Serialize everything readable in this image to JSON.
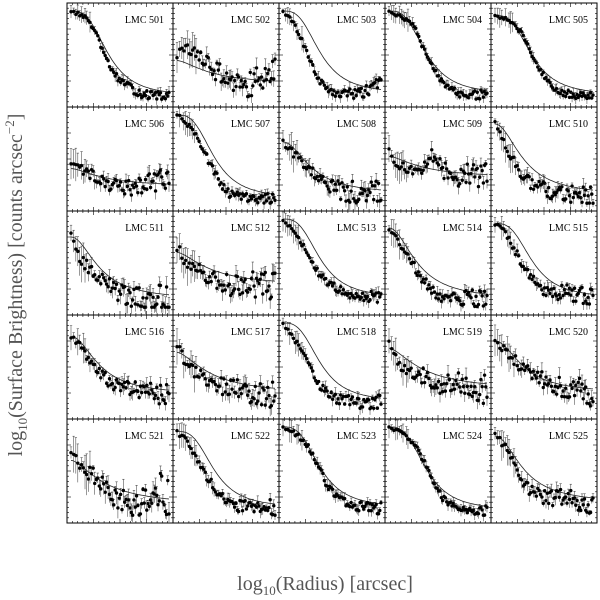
{
  "figure": {
    "ylabel": {
      "pre": "log",
      "sub": "10",
      "mid": "(Surface Brightness) [counts arcsec",
      "sup": "−2",
      "post": "]"
    },
    "xlabel": {
      "pre": "log",
      "sub": "10",
      "mid": "(Radius) [arcsec]"
    }
  },
  "chart_data": {
    "type": "scatter",
    "description_of_panels": "5x5 grid of radial surface brightness profiles with fitted model curves",
    "panels": [
      {
        "label": "LMC 501",
        "profile": [
          1.0,
          0.96,
          0.9,
          0.7,
          0.45,
          0.28,
          0.2,
          0.12,
          0.08,
          0.06,
          0.05,
          0.05
        ],
        "noise": 0.08,
        "model": "steep"
      },
      {
        "label": "LMC 502",
        "profile": [
          0.5,
          0.6,
          0.55,
          0.45,
          0.35,
          0.3,
          0.25,
          0.2,
          0.18,
          0.22,
          0.3,
          0.35
        ],
        "noise": 0.25,
        "model": "shallow"
      },
      {
        "label": "LMC 503",
        "profile": [
          1.0,
          0.9,
          0.7,
          0.45,
          0.25,
          0.12,
          0.08,
          0.1,
          0.08,
          0.1,
          0.15,
          0.2
        ],
        "noise": 0.1,
        "model": "steep"
      },
      {
        "label": "LMC 504",
        "profile": [
          1.0,
          0.95,
          0.9,
          0.8,
          0.55,
          0.35,
          0.2,
          0.12,
          0.08,
          0.07,
          0.07,
          0.07
        ],
        "noise": 0.08,
        "model": "steep"
      },
      {
        "label": "LMC 505",
        "profile": [
          0.95,
          0.92,
          0.88,
          0.75,
          0.55,
          0.35,
          0.2,
          0.12,
          0.08,
          0.07,
          0.06,
          0.06
        ],
        "noise": 0.07,
        "model": "steep"
      },
      {
        "label": "LMC 506",
        "profile": [
          0.45,
          0.4,
          0.35,
          0.3,
          0.25,
          0.2,
          0.2,
          0.2,
          0.22,
          0.25,
          0.28,
          0.25
        ],
        "noise": 0.2,
        "model": "shallow"
      },
      {
        "label": "LMC 507",
        "profile": [
          1.0,
          0.92,
          0.8,
          0.6,
          0.4,
          0.22,
          0.12,
          0.1,
          0.08,
          0.08,
          0.07,
          0.07
        ],
        "noise": 0.1,
        "model": "steep"
      },
      {
        "label": "LMC 508",
        "profile": [
          0.7,
          0.6,
          0.5,
          0.4,
          0.3,
          0.22,
          0.18,
          0.15,
          0.15,
          0.15,
          0.15,
          0.12
        ],
        "noise": 0.22,
        "model": "mid"
      },
      {
        "label": "LMC 509",
        "profile": [
          0.6,
          0.45,
          0.4,
          0.35,
          0.45,
          0.55,
          0.4,
          0.35,
          0.3,
          0.35,
          0.3,
          0.35
        ],
        "noise": 0.2,
        "model": "shallow"
      },
      {
        "label": "LMC 510",
        "profile": [
          0.9,
          0.7,
          0.5,
          0.35,
          0.25,
          0.2,
          0.15,
          0.15,
          0.12,
          0.12,
          0.1,
          0.1
        ],
        "noise": 0.18,
        "model": "mid"
      },
      {
        "label": "LMC 511",
        "profile": [
          0.8,
          0.55,
          0.45,
          0.35,
          0.3,
          0.2,
          0.15,
          0.12,
          0.1,
          0.12,
          0.12,
          0.1
        ],
        "noise": 0.25,
        "model": "mid"
      },
      {
        "label": "LMC 512",
        "profile": [
          0.7,
          0.5,
          0.45,
          0.4,
          0.35,
          0.3,
          0.25,
          0.25,
          0.25,
          0.28,
          0.25,
          0.25
        ],
        "noise": 0.25,
        "model": "shallow"
      },
      {
        "label": "LMC 513",
        "profile": [
          1.0,
          0.9,
          0.75,
          0.55,
          0.4,
          0.3,
          0.22,
          0.18,
          0.15,
          0.14,
          0.13,
          0.12
        ],
        "noise": 0.1,
        "model": "steep"
      },
      {
        "label": "LMC 514",
        "profile": [
          0.9,
          0.75,
          0.6,
          0.45,
          0.3,
          0.2,
          0.15,
          0.12,
          0.12,
          0.12,
          0.12,
          0.1
        ],
        "noise": 0.15,
        "model": "mid"
      },
      {
        "label": "LMC 515",
        "profile": [
          0.95,
          0.9,
          0.7,
          0.5,
          0.35,
          0.25,
          0.2,
          0.18,
          0.2,
          0.15,
          0.15,
          0.12
        ],
        "noise": 0.15,
        "model": "steep"
      },
      {
        "label": "LMC 516",
        "profile": [
          0.85,
          0.75,
          0.6,
          0.45,
          0.38,
          0.32,
          0.3,
          0.28,
          0.25,
          0.22,
          0.2,
          0.2
        ],
        "noise": 0.18,
        "model": "mid"
      },
      {
        "label": "LMC 517",
        "profile": [
          0.75,
          0.55,
          0.45,
          0.4,
          0.35,
          0.3,
          0.28,
          0.25,
          0.22,
          0.22,
          0.2,
          0.2
        ],
        "noise": 0.22,
        "model": "shallow"
      },
      {
        "label": "LMC 518",
        "profile": [
          1.0,
          0.85,
          0.7,
          0.5,
          0.32,
          0.22,
          0.16,
          0.14,
          0.12,
          0.12,
          0.12,
          0.12
        ],
        "noise": 0.12,
        "model": "steep"
      },
      {
        "label": "LMC 519",
        "profile": [
          0.8,
          0.55,
          0.5,
          0.45,
          0.4,
          0.3,
          0.3,
          0.35,
          0.3,
          0.3,
          0.25,
          0.25
        ],
        "noise": 0.25,
        "model": "shallow"
      },
      {
        "label": "LMC 520",
        "profile": [
          0.8,
          0.7,
          0.6,
          0.5,
          0.45,
          0.4,
          0.35,
          0.3,
          0.28,
          0.25,
          0.25,
          0.22
        ],
        "noise": 0.22,
        "model": "mid"
      },
      {
        "label": "LMC 521",
        "profile": [
          0.7,
          0.55,
          0.5,
          0.4,
          0.3,
          0.2,
          0.15,
          0.12,
          0.15,
          0.25,
          0.3,
          0.2
        ],
        "noise": 0.3,
        "model": "shallow"
      },
      {
        "label": "LMC 522",
        "profile": [
          0.95,
          0.85,
          0.7,
          0.5,
          0.35,
          0.22,
          0.15,
          0.12,
          0.12,
          0.12,
          0.12,
          0.1
        ],
        "noise": 0.12,
        "model": "steep"
      },
      {
        "label": "LMC 523",
        "profile": [
          1.0,
          0.95,
          0.88,
          0.75,
          0.55,
          0.35,
          0.22,
          0.15,
          0.12,
          0.12,
          0.1,
          0.1
        ],
        "noise": 0.1,
        "model": "steep"
      },
      {
        "label": "LMC 524",
        "profile": [
          1.0,
          0.95,
          0.9,
          0.8,
          0.6,
          0.4,
          0.22,
          0.12,
          0.08,
          0.07,
          0.07,
          0.07
        ],
        "noise": 0.08,
        "model": "steep"
      },
      {
        "label": "LMC 525",
        "profile": [
          0.9,
          0.8,
          0.6,
          0.4,
          0.3,
          0.25,
          0.2,
          0.22,
          0.2,
          0.18,
          0.18,
          0.15
        ],
        "noise": 0.18,
        "model": "mid"
      }
    ]
  }
}
